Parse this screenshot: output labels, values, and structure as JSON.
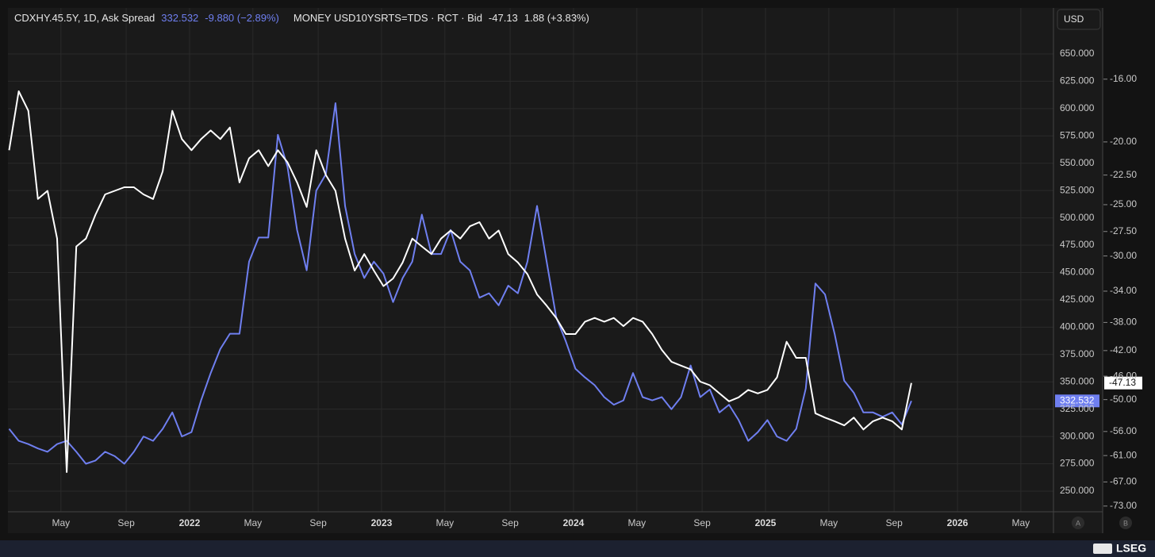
{
  "chart_data": {
    "type": "line",
    "x": [
      2021.06,
      2021.11,
      2021.16,
      2021.21,
      2021.26,
      2021.31,
      2021.36,
      2021.41,
      2021.46,
      2021.51,
      2021.56,
      2021.61,
      2021.66,
      2021.71,
      2021.76,
      2021.81,
      2021.86,
      2021.91,
      2021.96,
      2022.01,
      2022.06,
      2022.11,
      2022.16,
      2022.21,
      2022.26,
      2022.31,
      2022.36,
      2022.41,
      2022.46,
      2022.51,
      2022.56,
      2022.61,
      2022.66,
      2022.71,
      2022.76,
      2022.81,
      2022.86,
      2022.91,
      2022.96,
      2023.01,
      2023.06,
      2023.11,
      2023.16,
      2023.21,
      2023.26,
      2023.31,
      2023.36,
      2023.41,
      2023.46,
      2023.51,
      2023.56,
      2023.61,
      2023.66,
      2023.71,
      2023.76,
      2023.81,
      2023.86,
      2023.91,
      2023.96,
      2024.01,
      2024.06,
      2024.11,
      2024.16,
      2024.21,
      2024.26,
      2024.31,
      2024.36,
      2024.41,
      2024.46,
      2024.51,
      2024.56,
      2024.61,
      2024.66,
      2024.71,
      2024.76,
      2024.81,
      2024.86,
      2024.91,
      2024.96,
      2025.01,
      2025.06,
      2025.11,
      2025.16,
      2025.21,
      2025.26,
      2025.31,
      2025.36,
      2025.41,
      2025.46,
      2025.51,
      2025.56,
      2025.61,
      2025.66,
      2025.71,
      2025.76
    ],
    "xlim": [
      2021.054,
      2026.5
    ],
    "xticks": [
      {
        "value": 2021.33,
        "label": "May"
      },
      {
        "value": 2021.67,
        "label": "Sep"
      },
      2022,
      {
        "value": 2022.33,
        "label": "May"
      },
      {
        "value": 2022.67,
        "label": "Sep"
      },
      2023,
      {
        "value": 2023.33,
        "label": "May"
      },
      {
        "value": 2023.67,
        "label": "Sep"
      },
      2024,
      {
        "value": 2024.33,
        "label": "May"
      },
      {
        "value": 2024.67,
        "label": "Sep"
      },
      2025,
      {
        "value": 2025.33,
        "label": "May"
      },
      {
        "value": 2025.67,
        "label": "Sep"
      },
      2026,
      {
        "value": 2026.33,
        "label": "May"
      }
    ],
    "ylim": [
      231.1,
      692.1
    ],
    "yticks": [
      {
        "value": 250,
        "label": "250.000"
      },
      {
        "value": 275,
        "label": "275.000"
      },
      {
        "value": 300,
        "label": "300.000"
      },
      {
        "value": 325,
        "label": "325.000"
      },
      {
        "value": 350,
        "label": "350.000"
      },
      {
        "value": 375,
        "label": "375.000"
      },
      {
        "value": 400,
        "label": "400.000"
      },
      {
        "value": 425,
        "label": "425.000"
      },
      {
        "value": 450,
        "label": "450.000"
      },
      {
        "value": 475,
        "label": "475.000"
      },
      {
        "value": 500,
        "label": "500.000"
      },
      {
        "value": 525,
        "label": "525.000"
      },
      {
        "value": 550,
        "label": "550.000"
      },
      {
        "value": 575,
        "label": "575.000"
      },
      {
        "value": 600,
        "label": "600.000"
      },
      {
        "value": 625,
        "label": "625.000"
      },
      {
        "value": 650,
        "label": "650.000"
      }
    ],
    "y2lim": [
      -12.42,
      -74.5
    ],
    "y2scale": "log",
    "y2ticks": [
      {
        "value": -16,
        "label": "-16.00"
      },
      {
        "value": -20,
        "label": "-20.00"
      },
      {
        "value": -22.5,
        "label": "-22.50"
      },
      {
        "value": -25,
        "label": "-25.00"
      },
      {
        "value": -27.5,
        "label": "-27.50"
      },
      {
        "value": -30,
        "label": "-30.00"
      },
      {
        "value": -34,
        "label": "-34.00"
      },
      {
        "value": -38,
        "label": "-38.00"
      },
      {
        "value": -42,
        "label": "-42.00"
      },
      {
        "value": -46,
        "label": "-46.00"
      },
      {
        "value": -50,
        "label": "-50.00"
      },
      {
        "value": -56,
        "label": "-56.00"
      },
      {
        "value": -61,
        "label": "-61.00"
      },
      {
        "value": -67,
        "label": "-67.00"
      },
      {
        "value": -73,
        "label": "-73.00"
      }
    ],
    "grid": true,
    "currency": "USD",
    "series": [
      {
        "name": "CDXHY.45.5Y, 1D, Ask Spread",
        "color": "#6f7ff0",
        "change_label": "-9.880 (−2.89%)",
        "values": [
          307,
          296,
          293,
          289,
          286,
          293,
          296,
          286,
          275,
          278,
          286,
          282,
          275,
          286,
          300,
          296,
          307,
          322,
          300,
          304,
          333,
          358,
          380,
          394,
          394,
          460,
          482,
          482,
          576,
          547,
          489,
          452,
          525,
          540,
          605,
          511,
          467,
          445,
          460,
          449,
          423,
          445,
          460,
          503,
          467,
          467,
          489,
          460,
          452,
          427,
          431,
          420,
          438,
          431,
          460,
          511,
          460,
          409,
          387,
          362,
          354,
          347,
          336,
          329,
          333,
          358,
          336,
          333,
          336,
          325,
          336,
          365,
          336,
          343,
          322,
          329,
          315,
          296,
          304,
          315,
          300,
          296,
          307,
          344,
          440,
          430,
          394,
          351,
          340,
          322,
          322,
          318,
          322,
          311,
          332.532
        ]
      },
      {
        "name": "MONEY USD10YSRTS=TDS · RCT · Bid",
        "color": "#ffffff",
        "axis": "y2",
        "change_label": "1.88 (+3.83%)",
        "values": [
          -20.6,
          -16.7,
          -17.9,
          -24.5,
          -23.8,
          -28.2,
          -64.7,
          -29.0,
          -28.2,
          -25.9,
          -24.1,
          -23.8,
          -23.5,
          -23.5,
          -24.1,
          -24.5,
          -22.2,
          -17.9,
          -19.8,
          -20.6,
          -19.8,
          -19.2,
          -19.8,
          -19.0,
          -23.1,
          -21.2,
          -20.6,
          -21.8,
          -20.6,
          -21.5,
          -23.1,
          -25.2,
          -20.6,
          -22.5,
          -23.8,
          -28.2,
          -31.6,
          -29.8,
          -31.6,
          -33.4,
          -32.5,
          -30.7,
          -28.2,
          -29.0,
          -29.8,
          -28.2,
          -27.4,
          -28.2,
          -27.0,
          -26.6,
          -28.2,
          -27.4,
          -29.8,
          -30.7,
          -32.0,
          -34.4,
          -35.8,
          -37.4,
          -39.6,
          -39.6,
          -37.9,
          -37.4,
          -37.9,
          -37.4,
          -38.5,
          -37.4,
          -37.9,
          -39.6,
          -41.9,
          -43.7,
          -44.3,
          -44.9,
          -46.9,
          -47.5,
          -48.9,
          -50.3,
          -49.6,
          -48.3,
          -48.9,
          -48.3,
          -46.2,
          -40.7,
          -43.1,
          -43.1,
          -52.5,
          -53.3,
          -54.0,
          -54.8,
          -53.3,
          -55.6,
          -54.0,
          -53.3,
          -54.0,
          -55.6,
          -47.13
        ]
      }
    ]
  },
  "ui": {
    "pane_buttons": [
      "A",
      "B"
    ],
    "brand": "LSEG"
  }
}
